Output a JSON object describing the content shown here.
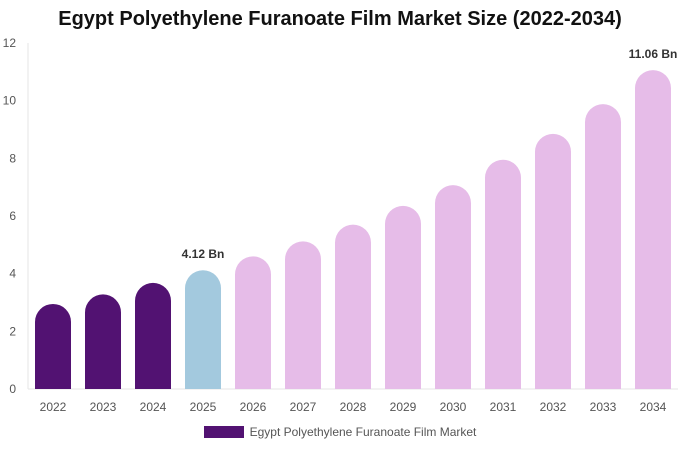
{
  "chart_data": {
    "type": "bar",
    "title": "Egypt Polyethylene Furanoate Film Market Size (2022-2034)",
    "categories": [
      "2022",
      "2023",
      "2024",
      "2025",
      "2026",
      "2027",
      "2028",
      "2029",
      "2030",
      "2031",
      "2032",
      "2033",
      "2034"
    ],
    "series": [
      {
        "name": "Egypt Polyethylene Furanoate Film Market",
        "values": [
          2.95,
          3.28,
          3.68,
          4.12,
          4.6,
          5.12,
          5.7,
          6.35,
          7.07,
          7.95,
          8.85,
          9.88,
          11.06
        ]
      }
    ],
    "bar_colors": [
      "#521272",
      "#521272",
      "#521272",
      "#a3c9de",
      "#e6bce8",
      "#e6bce8",
      "#e6bce8",
      "#e6bce8",
      "#e6bce8",
      "#e6bce8",
      "#e6bce8",
      "#e6bce8",
      "#e6bce8"
    ],
    "legend_color": "#521272",
    "data_labels": [
      {
        "category": "2025",
        "text": "4.12 Bn"
      },
      {
        "category": "2034",
        "text": "11.06 Bn"
      }
    ],
    "yticks": [
      0,
      2,
      4,
      6,
      8,
      10,
      12
    ],
    "ylim": [
      0,
      12
    ],
    "xlabel": "",
    "ylabel": "",
    "grid": false,
    "legend_position": "bottom-center"
  }
}
